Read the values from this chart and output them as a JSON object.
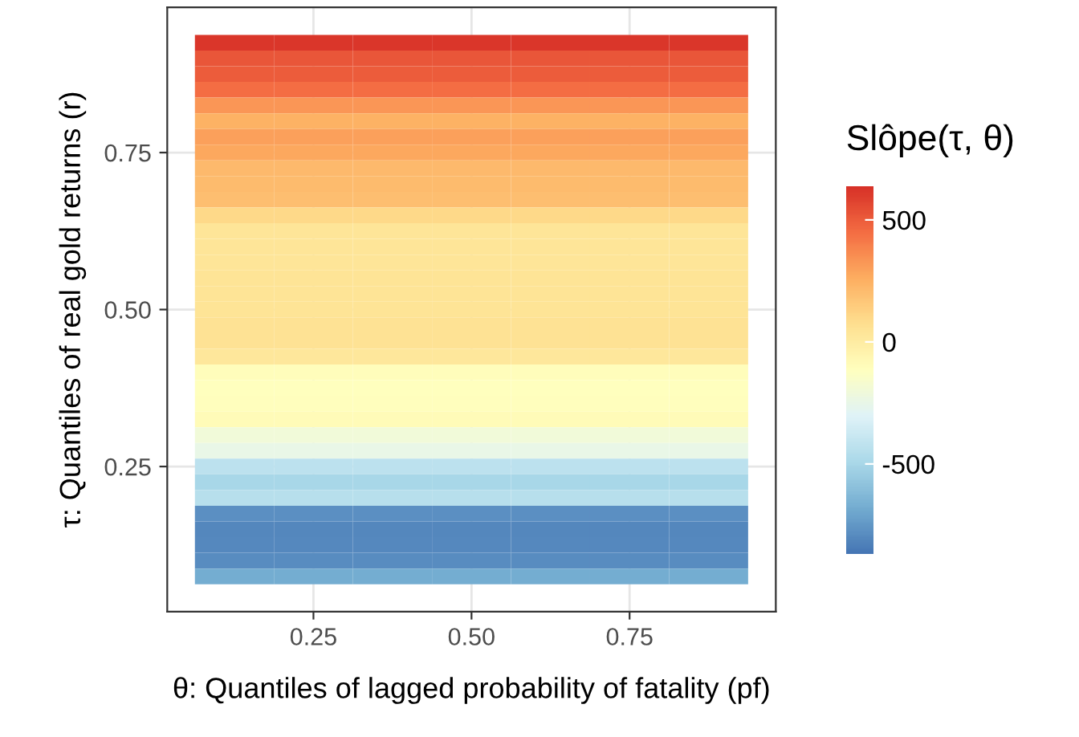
{
  "chart_data": {
    "type": "heatmap",
    "xlabel": "θ: Quantiles of lagged probability of fatality (pf)",
    "ylabel": "τ: Quantiles of real gold returns (r)",
    "clabel": "Slôpe(τ, θ)",
    "categories": [
      null,
      "0.25",
      null,
      "0.50",
      null,
      "0.75",
      null
    ],
    "y_categories": [
      null,
      null,
      null,
      null,
      null,
      null,
      null,
      "0.75",
      null,
      null,
      null,
      null,
      null,
      null,
      null,
      null,
      null,
      "0.50",
      null,
      null,
      null,
      null,
      null,
      null,
      null,
      null,
      null,
      "0.25",
      null,
      null,
      null,
      null,
      null,
      null,
      null
    ],
    "cells": [
      [
        620,
        620,
        620,
        620,
        620,
        620,
        620
      ],
      [
        520,
        520,
        520,
        520,
        520,
        520,
        520
      ],
      [
        500,
        500,
        500,
        500,
        500,
        500,
        500
      ],
      [
        450,
        450,
        450,
        450,
        450,
        450,
        450
      ],
      [
        330,
        330,
        330,
        330,
        330,
        330,
        330
      ],
      [
        250,
        250,
        250,
        250,
        250,
        250,
        250
      ],
      [
        300,
        300,
        300,
        300,
        300,
        300,
        300
      ],
      [
        275,
        275,
        275,
        275,
        275,
        275,
        275
      ],
      [
        220,
        220,
        220,
        220,
        220,
        220,
        220
      ],
      [
        210,
        210,
        210,
        210,
        210,
        210,
        210
      ],
      [
        200,
        200,
        200,
        200,
        200,
        200,
        200
      ],
      [
        100,
        100,
        100,
        100,
        100,
        100,
        100
      ],
      [
        40,
        40,
        40,
        40,
        40,
        40,
        40
      ],
      [
        40,
        40,
        40,
        40,
        40,
        40,
        40
      ],
      [
        40,
        40,
        40,
        40,
        40,
        40,
        40
      ],
      [
        45,
        45,
        45,
        45,
        45,
        45,
        45
      ],
      [
        50,
        50,
        50,
        50,
        50,
        50,
        50
      ],
      [
        50,
        50,
        50,
        50,
        50,
        50,
        50
      ],
      [
        60,
        60,
        60,
        60,
        60,
        60,
        60
      ],
      [
        60,
        60,
        60,
        60,
        60,
        60,
        60
      ],
      [
        30,
        30,
        30,
        30,
        30,
        30,
        30
      ],
      [
        -100,
        -100,
        -100,
        -100,
        -100,
        -100,
        -100
      ],
      [
        -110,
        -110,
        -110,
        -110,
        -110,
        -110,
        -110
      ],
      [
        -105,
        -105,
        -105,
        -105,
        -105,
        -105,
        -105
      ],
      [
        -90,
        -90,
        -90,
        -90,
        -90,
        -90,
        -90
      ],
      [
        -200,
        -200,
        -200,
        -200,
        -200,
        -200,
        -200
      ],
      [
        -250,
        -250,
        -250,
        -250,
        -250,
        -250,
        -250
      ],
      [
        -430,
        -430,
        -430,
        -430,
        -430,
        -430,
        -430
      ],
      [
        -500,
        -500,
        -500,
        -500,
        -500,
        -500,
        -500
      ],
      [
        -450,
        -450,
        -450,
        -450,
        -450,
        -450,
        -450
      ],
      [
        -780,
        -780,
        -780,
        -780,
        -780,
        -780,
        -780
      ],
      [
        -810,
        -810,
        -810,
        -810,
        -810,
        -810,
        -810
      ],
      [
        -800,
        -800,
        -800,
        -800,
        -800,
        -800,
        -800
      ],
      [
        -790,
        -790,
        -790,
        -790,
        -790,
        -790,
        -790
      ],
      [
        -680,
        -680,
        -680,
        -680,
        -680,
        -680,
        -680
      ]
    ],
    "clim": [
      -870,
      640
    ],
    "cticks": [
      -500,
      0,
      500
    ],
    "grid": true
  }
}
